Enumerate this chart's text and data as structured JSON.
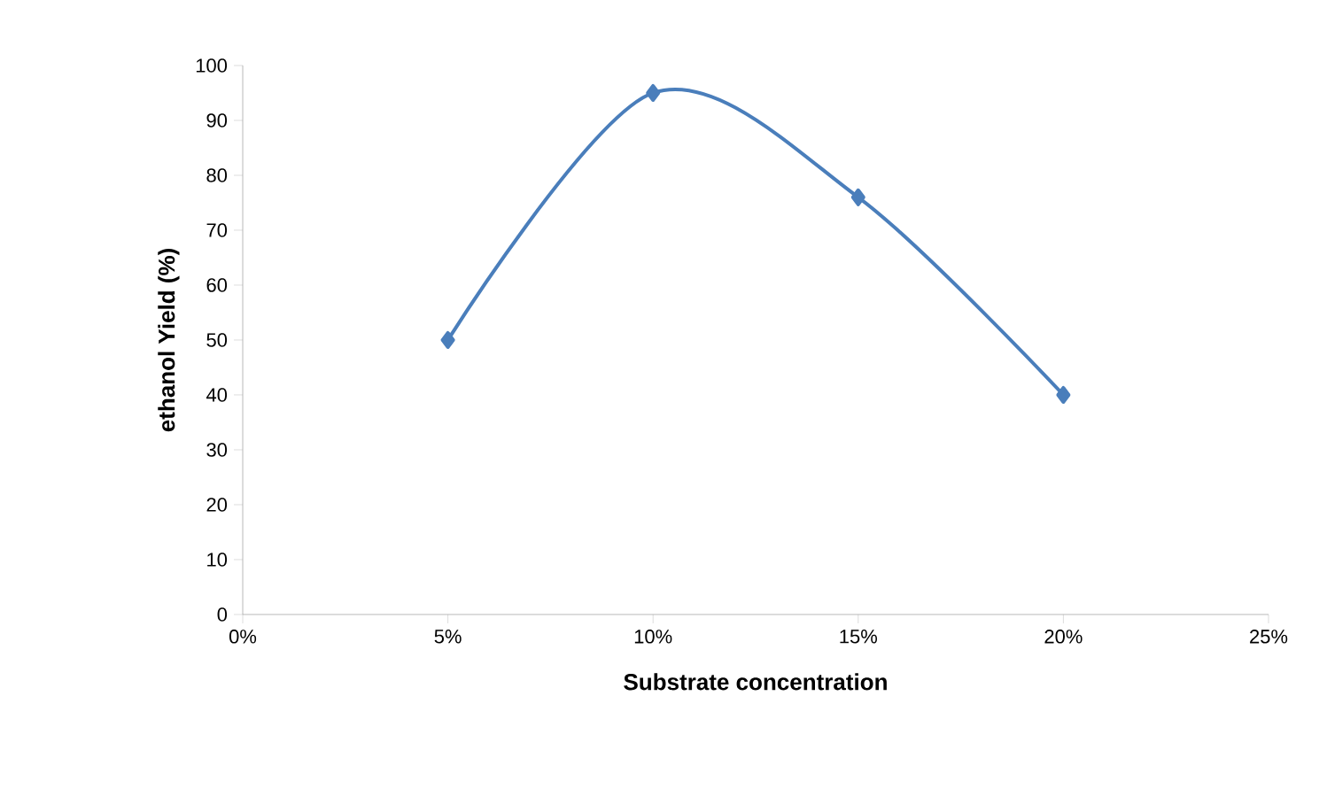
{
  "chart_data": {
    "type": "line",
    "xlabel": "Substrate concentration",
    "ylabel": "ethanol Yield (%)",
    "x": [
      5,
      10,
      15,
      20
    ],
    "series": [
      {
        "color": "#4a7ebb",
        "values": [
          50,
          95,
          76,
          40
        ]
      }
    ],
    "xlim": [
      0,
      25
    ],
    "xticks": [
      {
        "value": 0,
        "label": "0%"
      },
      {
        "value": 5,
        "label": "5%"
      },
      {
        "value": 10,
        "label": "10%"
      },
      {
        "value": 15,
        "label": "15%"
      },
      {
        "value": 20,
        "label": "20%"
      },
      {
        "value": 25,
        "label": "25%"
      }
    ],
    "ylim": [
      0,
      100
    ],
    "yticks": [
      0,
      10,
      20,
      30,
      40,
      50,
      60,
      70,
      80,
      90,
      100
    ],
    "grid": false,
    "marker": "diamond",
    "line_style": "solid"
  }
}
